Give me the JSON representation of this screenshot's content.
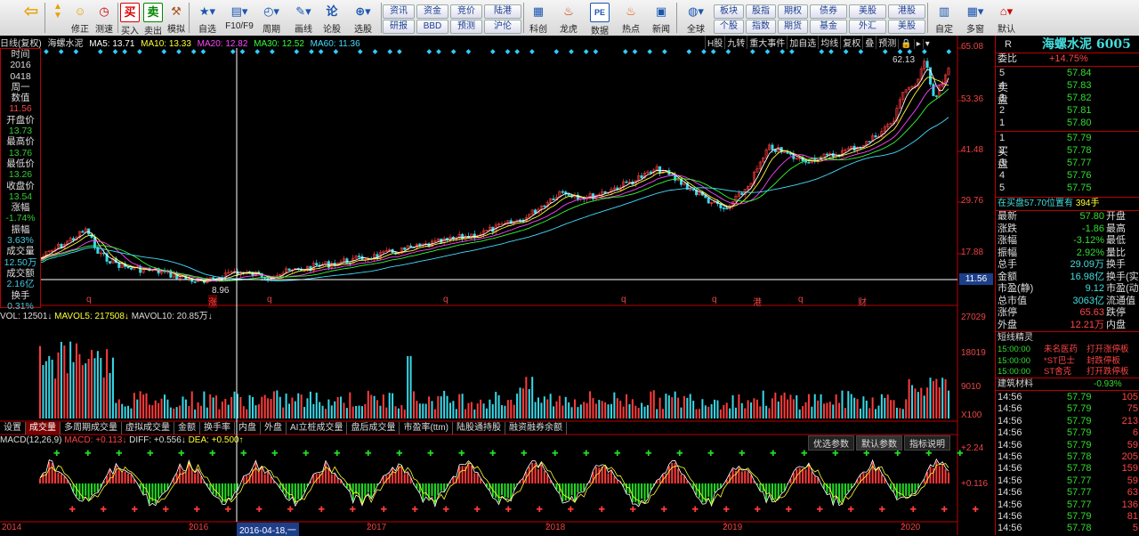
{
  "toolbar": {
    "buttons": [
      {
        "name": "back",
        "label": ""
      },
      {
        "name": "repair",
        "label": "修正"
      },
      {
        "name": "test-speed",
        "label": "测速"
      },
      {
        "name": "buy",
        "label": "买入",
        "glyph": "买"
      },
      {
        "name": "sell",
        "label": "卖出",
        "glyph": "卖"
      },
      {
        "name": "simulate",
        "label": "模拟"
      },
      {
        "name": "self-select",
        "label": "自选"
      },
      {
        "name": "f10",
        "label": "F10/F9"
      },
      {
        "name": "period",
        "label": "周期"
      },
      {
        "name": "draw-line",
        "label": "画线"
      },
      {
        "name": "lunshi",
        "label": "论股",
        "glyph": "论"
      },
      {
        "name": "pick-stock",
        "label": "选股"
      }
    ],
    "pills_row1": [
      "资讯",
      "资金",
      "竞价",
      "陆港"
    ],
    "pills_row2": [
      "研报",
      "BBD",
      "预测",
      "沪伦"
    ],
    "icons2": [
      {
        "name": "keji",
        "label": "科创"
      },
      {
        "name": "longhu",
        "label": "龙虎"
      },
      {
        "name": "shuju",
        "label": "数据",
        "glyph": "PE"
      },
      {
        "name": "redian",
        "label": "热点"
      },
      {
        "name": "xinwen",
        "label": "新闻"
      },
      {
        "name": "global",
        "label": "全球"
      }
    ],
    "pills3_row1": [
      "板块",
      "股指",
      "期权",
      "债券",
      "美股",
      "港股"
    ],
    "pills3_row2": [
      "个股",
      "指数",
      "期货",
      "基金",
      "外汇",
      "美股"
    ],
    "icons3": [
      {
        "name": "zidingyi",
        "label": "自定"
      },
      {
        "name": "multi-window",
        "label": "多窗"
      },
      {
        "name": "default",
        "label": "默认"
      }
    ]
  },
  "main_chart": {
    "title_prefix": "日线(复权)",
    "stock_name": "海螺水泥",
    "ma": [
      {
        "label": "MA5: 13.71",
        "color": "#ffffff"
      },
      {
        "label": "MA10: 13.33",
        "color": "#ffff33"
      },
      {
        "label": "MA20: 12.82",
        "color": "#ff44ff"
      },
      {
        "label": "MA30: 12.52",
        "color": "#33ff33"
      },
      {
        "label": "MA60: 11.36",
        "color": "#44ddff"
      }
    ],
    "top_buttons": [
      "H股",
      "九转",
      "重大事件",
      "加自选",
      "均线",
      "复权",
      "叠",
      "预测"
    ],
    "price_axis": [
      "65.08",
      "53.36",
      "41.48",
      "29.76",
      "17.88"
    ],
    "current_price_label": "11.56",
    "high_label": "62.13",
    "low_label": "8.96",
    "event_markers": [
      "q",
      "涨",
      "q",
      "q",
      "q",
      "q",
      "港",
      "q",
      "财"
    ]
  },
  "info_panel": {
    "items": [
      {
        "k": "时间",
        "v": "2016"
      },
      {
        "k": "",
        "v": "0418"
      },
      {
        "k": "",
        "v": "周一"
      },
      {
        "k": "数值",
        "v": "11.56"
      },
      {
        "k": "开盘价",
        "v": "13.73"
      },
      {
        "k": "最高价",
        "v": "13.76"
      },
      {
        "k": "最低价",
        "v": "13.26"
      },
      {
        "k": "收盘价",
        "v": "13.54"
      },
      {
        "k": "涨幅",
        "v": "-1.74%"
      },
      {
        "k": "振幅",
        "v": "3.63%"
      },
      {
        "k": "成交量",
        "v": "12.50万"
      },
      {
        "k": "成交额",
        "v": "2.16亿"
      },
      {
        "k": "换手",
        "v": "0.31%"
      }
    ]
  },
  "volume": {
    "header_prefix": "VOL: 12501↓",
    "mavol5": "MAVOL5: 217508↓",
    "mavol10": "MAVOL10: 20.85万↓",
    "axis": [
      "27029",
      "18019",
      "9010",
      "X100"
    ]
  },
  "tabs": [
    "设置",
    "成交量",
    "多周期成交量",
    "虚拟成交量",
    "金额",
    "换手率",
    "内盘",
    "外盘",
    "AI立桩成交量",
    "盘后成交量",
    "市盈率(ttm)",
    "陆股通持股",
    "融资融券余额"
  ],
  "macd": {
    "label": "MACD(12,26,9)",
    "macd": "MACD: +0.113↓",
    "diff": "DIFF: +0.556↓",
    "dea": "DEA: +0.500↑",
    "buttons": [
      "优选参数",
      "默认参数",
      "指标说明"
    ],
    "axis": [
      "+2.24",
      "+0.116"
    ]
  },
  "x_axis": [
    "2014",
    "2016",
    "2016-04-18,一",
    "2017",
    "2018",
    "2019",
    "2020"
  ],
  "right_panel": {
    "code_prefix": "R",
    "name": "海螺水泥 6005",
    "weibi_label": "委比",
    "weibi_value": "+14.75%",
    "sell_label": "卖盘",
    "buy_label": "买盘",
    "sells": [
      {
        "lvl": "5",
        "price": "57.84"
      },
      {
        "lvl": "4",
        "price": "57.83"
      },
      {
        "lvl": "3",
        "price": "57.82"
      },
      {
        "lvl": "2",
        "price": "57.81"
      },
      {
        "lvl": "1",
        "price": "57.80"
      }
    ],
    "buys": [
      {
        "lvl": "1",
        "price": "57.79"
      },
      {
        "lvl": "2",
        "price": "57.78"
      },
      {
        "lvl": "3",
        "price": "57.77"
      },
      {
        "lvl": "4",
        "price": "57.76"
      },
      {
        "lvl": "5",
        "price": "57.75"
      }
    ],
    "note": "在买盘57.70位置有",
    "note_vol": "394手",
    "stats": [
      {
        "k1": "最新",
        "v1": "57.80",
        "k2": "开盘"
      },
      {
        "k1": "涨跌",
        "v1": "-1.86",
        "k2": "最高"
      },
      {
        "k1": "涨幅",
        "v1": "-3.12%",
        "k2": "最低"
      },
      {
        "k1": "振幅",
        "v1": "2.92%",
        "k2": "量比"
      },
      {
        "k1": "总手",
        "v1": "29.09万",
        "k2": "换手"
      },
      {
        "k1": "金额",
        "v1": "16.98亿",
        "k2": "换手(实)"
      },
      {
        "k1": "市盈(静)",
        "v1": "9.12",
        "k2": "市盈(动)"
      },
      {
        "k1": "总市值",
        "v1": "3063亿",
        "k2": "流通值"
      },
      {
        "k1": "涨停",
        "v1": "65.63",
        "k2": "跌停"
      },
      {
        "k1": "外盘",
        "v1": "12.21万",
        "k2": "内盘"
      }
    ],
    "elf_title": "短线精灵",
    "elf": [
      {
        "t": "15:00:00",
        "n": "未名医药",
        "a": "打开涨停板"
      },
      {
        "t": "15:00:00",
        "n": "*ST巴士",
        "a": "封跌停板"
      },
      {
        "t": "15:00:00",
        "n": "ST舍克",
        "a": "打开跌停板"
      }
    ],
    "sector_name": "建筑材料",
    "sector_pct": "-0.93%",
    "ticks": [
      {
        "t": "14:56",
        "p": "57.79",
        "v": "105"
      },
      {
        "t": "14:56",
        "p": "57.79",
        "v": "75"
      },
      {
        "t": "14:56",
        "p": "57.79",
        "v": "213"
      },
      {
        "t": "14:56",
        "p": "57.79",
        "v": "6"
      },
      {
        "t": "14:56",
        "p": "57.79",
        "v": "59"
      },
      {
        "t": "14:56",
        "p": "57.78",
        "v": "205"
      },
      {
        "t": "14:56",
        "p": "57.78",
        "v": "159"
      },
      {
        "t": "14:56",
        "p": "57.77",
        "v": "59"
      },
      {
        "t": "14:56",
        "p": "57.77",
        "v": "63"
      },
      {
        "t": "14:56",
        "p": "57.77",
        "v": "136"
      },
      {
        "t": "14:56",
        "p": "57.79",
        "v": "81"
      },
      {
        "t": "14:56",
        "p": "57.78",
        "v": "5"
      }
    ]
  }
}
